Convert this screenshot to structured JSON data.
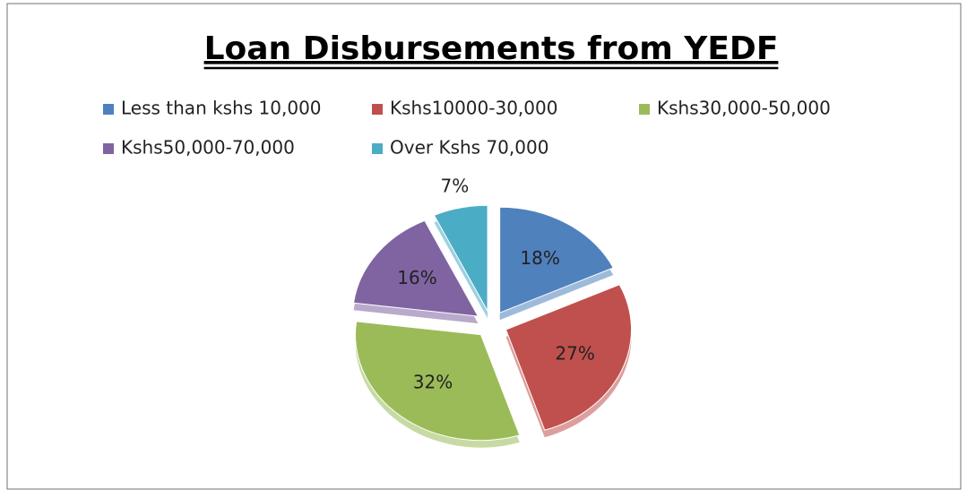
{
  "chart_data": {
    "type": "pie",
    "title": "Loan Disbursements from YEDF",
    "categories": [
      "Less than kshs 10,000",
      "Kshs10000-30,000",
      "Kshs30,000-50,000",
      "Kshs50,000-70,000",
      "Over Kshs 70,000"
    ],
    "values": [
      18,
      27,
      32,
      16,
      7
    ],
    "value_labels": [
      "18%",
      "27%",
      "32%",
      "16%",
      "7%"
    ],
    "colors": [
      "#4f81bd",
      "#c0504d",
      "#9bbb59",
      "#8064a2",
      "#4bacc6"
    ],
    "legend": "top"
  }
}
